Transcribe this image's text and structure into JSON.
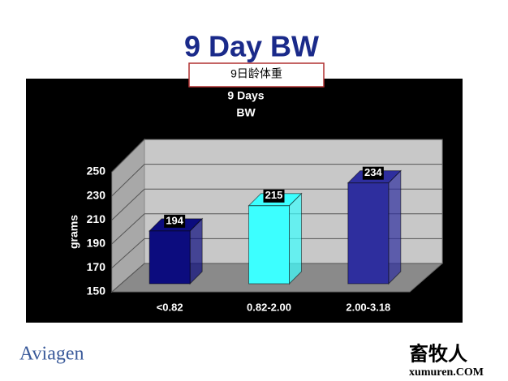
{
  "slide_title": "9 Day BW",
  "annotation": "9日龄体重",
  "logo": "Aviagen",
  "watermark": {
    "name": "畜牧人",
    "site": "xumuren.COM"
  },
  "chart_data": {
    "type": "bar",
    "title": "9 Days",
    "subtitle": "BW",
    "y_label": "grams",
    "categories": [
      "<0.82",
      "0.82-2.00",
      "2.00-3.18"
    ],
    "values": [
      194,
      215,
      234
    ],
    "colors": [
      "#0c0c7e",
      "#3cffff",
      "#2e2e9e"
    ],
    "ylim": [
      150,
      250
    ],
    "yticks": [
      150,
      170,
      190,
      210,
      230,
      250
    ],
    "grid": true
  }
}
